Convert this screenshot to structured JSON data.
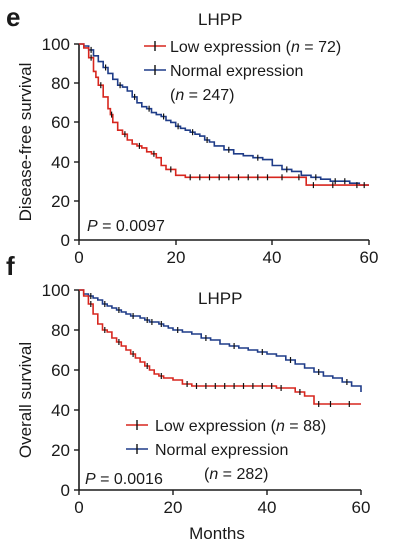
{
  "colors": {
    "low": "#d7261e",
    "normal": "#1f3c88",
    "censor": "#111111",
    "axis": "#1a1a1a"
  },
  "chart_data": [
    {
      "type": "line",
      "panel": "e",
      "title": "LHPP",
      "xlabel": "",
      "ylabel": "Disease-free survival",
      "xlim": [
        0,
        60
      ],
      "ylim": [
        0,
        100
      ],
      "xticks": [
        0,
        20,
        40,
        60
      ],
      "yticks": [
        0,
        20,
        40,
        60,
        80,
        100
      ],
      "annotation": {
        "prefix": "P",
        "text": " = 0.0097"
      },
      "legend": {
        "position": "top-right",
        "low": {
          "line1": "Low expression (",
          "n": "n",
          "line1_end": " = 72)"
        },
        "normal": {
          "line1": "Normal expression",
          "line2_open": "(",
          "n": "n",
          "line2_end": " = 247)"
        }
      },
      "series": [
        {
          "key": "low",
          "name": "Low expression",
          "x": [
            0,
            1,
            2,
            3,
            3.5,
            4,
            5,
            6,
            6.5,
            7,
            8,
            9,
            10,
            11,
            12,
            13,
            14,
            15,
            16,
            17,
            18,
            20,
            22,
            24,
            26,
            28,
            30,
            32,
            34,
            36,
            38,
            40,
            44,
            47,
            50,
            55,
            60
          ],
          "y": [
            100,
            98,
            93,
            86,
            83,
            79,
            73,
            67,
            64,
            60,
            56,
            54,
            51,
            49,
            48,
            47,
            45,
            44,
            42,
            38,
            36,
            33,
            32,
            32,
            32,
            32,
            32,
            32,
            32,
            32,
            32,
            32,
            32,
            28,
            28,
            28,
            28
          ]
        },
        {
          "key": "normal",
          "name": "Normal expression",
          "x": [
            0,
            1,
            2,
            3,
            4,
            5,
            6,
            7,
            8,
            9,
            10,
            11,
            12,
            13,
            14,
            15,
            16,
            17,
            18,
            19,
            20,
            21,
            22,
            23,
            24,
            25,
            26,
            27,
            28,
            30,
            32,
            34,
            36,
            38,
            40,
            42,
            44,
            46,
            48,
            50,
            52,
            54,
            56,
            58,
            60
          ],
          "y": [
            100,
            99,
            97,
            94,
            91,
            88,
            85,
            82,
            79,
            78,
            76,
            73,
            70,
            68,
            67,
            65,
            64,
            63,
            61,
            60,
            58,
            57,
            56,
            55,
            54,
            53,
            51,
            50,
            48,
            46,
            44,
            43,
            42,
            41,
            38,
            36,
            35,
            33,
            32,
            31,
            30,
            30,
            29,
            28,
            28
          ]
        }
      ]
    },
    {
      "type": "line",
      "panel": "f",
      "title": "LHPP",
      "xlabel": "Months",
      "ylabel": "Overall survival",
      "xlim": [
        0,
        60
      ],
      "ylim": [
        0,
        100
      ],
      "xticks": [
        0,
        20,
        40,
        60
      ],
      "yticks": [
        0,
        20,
        40,
        60,
        80,
        100
      ],
      "annotation": {
        "prefix": "P",
        "text": " = 0.0016"
      },
      "legend": {
        "position": "bottom-right",
        "low": {
          "line1": "Low expression (",
          "n": "n",
          "line1_end": " = 88)"
        },
        "normal": {
          "line1": "Normal expression",
          "line2_open": "(",
          "n": "n",
          "line2_end": " = 282)"
        }
      },
      "series": [
        {
          "key": "low",
          "name": "Low expression",
          "x": [
            0,
            1,
            2,
            3,
            4,
            5,
            6,
            7,
            8,
            9,
            10,
            11,
            12,
            13,
            14,
            15,
            16,
            17,
            18,
            20,
            22,
            24,
            26,
            28,
            30,
            32,
            34,
            36,
            38,
            40,
            42,
            44,
            46,
            48,
            50,
            52,
            55,
            60
          ],
          "y": [
            100,
            97,
            93,
            88,
            83,
            80,
            79,
            76,
            74,
            72,
            70,
            68,
            66,
            64,
            62,
            60,
            58,
            57,
            56,
            55,
            53,
            52,
            52,
            52,
            52,
            52,
            52,
            52,
            52,
            52,
            51,
            51,
            49,
            47,
            43,
            43,
            43,
            43
          ]
        },
        {
          "key": "normal",
          "name": "Normal expression",
          "x": [
            0,
            1,
            2,
            3,
            4,
            5,
            6,
            7,
            8,
            9,
            10,
            11,
            12,
            13,
            14,
            15,
            16,
            17,
            18,
            19,
            20,
            22,
            24,
            26,
            28,
            30,
            32,
            34,
            36,
            38,
            40,
            42,
            44,
            46,
            48,
            50,
            52,
            54,
            56,
            58,
            60
          ],
          "y": [
            100,
            98,
            97,
            96,
            95,
            93,
            92,
            91,
            90,
            89,
            88,
            87,
            87,
            86,
            85,
            84,
            84,
            83,
            82,
            81,
            80,
            79,
            78,
            76,
            75,
            73,
            72,
            71,
            70,
            69,
            68,
            67,
            65,
            63,
            61,
            59,
            57,
            56,
            54,
            52,
            49
          ]
        }
      ]
    }
  ]
}
